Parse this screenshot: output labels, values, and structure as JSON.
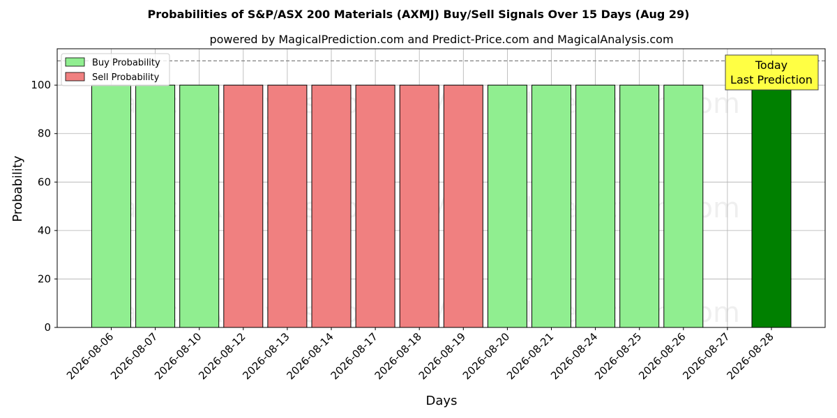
{
  "chart_data": {
    "type": "bar",
    "title": "Probabilities of S&P/ASX 200 Materials (AXMJ) Buy/Sell Signals Over 15 Days (Aug 29)",
    "subtitle": "powered by MagicalPrediction.com and Predict-Price.com and MagicalAnalysis.com",
    "xlabel": "Days",
    "ylabel": "Probability",
    "ylim": [
      0,
      115
    ],
    "yticks": [
      0,
      20,
      40,
      60,
      80,
      100
    ],
    "reference_line": 110,
    "grid": true,
    "legend_placement": "top-left",
    "categories": [
      "2026-08-06",
      "2026-08-07",
      "2026-08-10",
      "2026-08-12",
      "2026-08-13",
      "2026-08-14",
      "2026-08-17",
      "2026-08-18",
      "2026-08-19",
      "2026-08-20",
      "2026-08-21",
      "2026-08-24",
      "2026-08-25",
      "2026-08-26",
      "2026-08-27",
      "2026-08-28"
    ],
    "series": [
      {
        "name": "Buy Probability",
        "color": "#90ee90",
        "values": [
          100,
          100,
          100,
          null,
          null,
          null,
          null,
          null,
          null,
          100,
          100,
          100,
          100,
          100,
          null,
          100
        ]
      },
      {
        "name": "Sell Probability",
        "color": "#f08080",
        "values": [
          null,
          null,
          null,
          100,
          100,
          100,
          100,
          100,
          100,
          null,
          null,
          null,
          null,
          null,
          null,
          null
        ]
      }
    ],
    "highlight": {
      "category": "2026-08-28",
      "color": "#008000"
    },
    "annotation": {
      "lines": [
        "Today",
        "Last Prediction"
      ],
      "color": "#ffff44"
    },
    "watermarks": [
      "MagicalAnalysis.com",
      "MagicalPrediction.com"
    ]
  }
}
